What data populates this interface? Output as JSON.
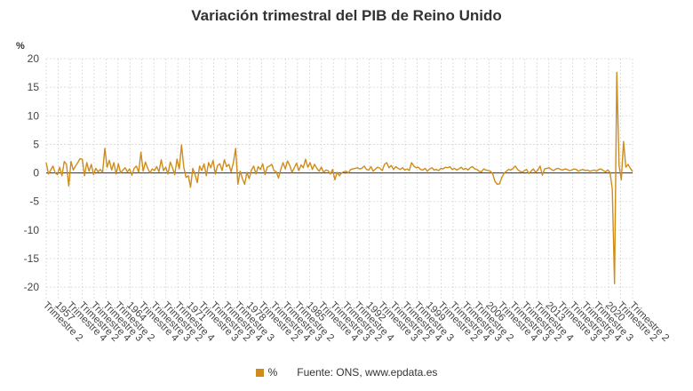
{
  "chart_data": {
    "type": "line",
    "title": "Variación trimestral del PIB de Reino Unido",
    "ylabel": "%",
    "ylim": [
      -22,
      20
    ],
    "yticks": [
      20,
      15,
      10,
      5,
      0,
      -5,
      -10,
      -15,
      -20
    ],
    "x_start_year": 1955,
    "x_start_quarter": 2,
    "x_label_every": 2,
    "x_tick_labels": [
      "Trimestre 2",
      "1957",
      "Trimestre 4",
      "Trimestre 2",
      "Trimestre 4",
      "Trimestre 3",
      "Trimestre 2",
      "1964",
      "Trimestre 4",
      "Trimestre 3",
      "Trimestre 2",
      "Trimestre 4",
      "1971",
      "Trimestre 3",
      "Trimestre 2",
      "Trimestre 4",
      "Trimestre 3",
      "1978",
      "Trimestre 2",
      "Trimestre 4",
      "Trimestre 3",
      "Trimestre 2",
      "1985",
      "Trimestre 4",
      "Trimestre 3",
      "Trimestre 2",
      "Trimestre 4",
      "1992",
      "Trimestre 3",
      "Trimestre 2",
      "Trimestre 4",
      "Trimestre 3",
      "1999",
      "Trimestre 2",
      "Trimestre 4",
      "Trimestre 3",
      "Trimestre 2",
      "2006",
      "Trimestre 4",
      "Trimestre 3",
      "Trimestre 2",
      "Trimestre 4",
      "2013",
      "Trimestre 3",
      "Trimestre 2",
      "Trimestre 4",
      "Trimestre 3",
      "2020",
      "Trimestre 2",
      "Trimestre 2"
    ],
    "grid": true,
    "legend_position": "bottom",
    "series": [
      {
        "name": "%",
        "color": "#d08c1a",
        "values": [
          1.8,
          -0.2,
          0.5,
          1.2,
          0.0,
          -0.3,
          1.0,
          -0.5,
          2.0,
          1.5,
          -2.3,
          2.0,
          0.5,
          1.2,
          1.8,
          2.5,
          2.4,
          -0.5,
          1.8,
          0.3,
          1.5,
          -0.3,
          0.8,
          0.2,
          0.6,
          0.1,
          4.3,
          1.0,
          2.2,
          0.5,
          1.8,
          -0.2,
          1.6,
          0.0,
          0.5,
          0.9,
          0.2,
          0.7,
          -0.4,
          0.8,
          1.2,
          0.1,
          3.6,
          0.3,
          1.9,
          0.8,
          0.0,
          0.7,
          0.4,
          1.1,
          0.2,
          2.3,
          0.4,
          1.0,
          -0.2,
          1.9,
          0.9,
          -0.3,
          2.4,
          0.7,
          4.9,
          1.0,
          -0.8,
          -0.5,
          -2.5,
          0.8,
          -0.3,
          -1.7,
          1.2,
          0.4,
          1.6,
          -0.5,
          1.8,
          0.9,
          2.2,
          -0.2,
          1.3,
          1.6,
          0.4,
          2.3,
          1.1,
          1.5,
          0.2,
          1.8,
          4.3,
          -2.0,
          0.3,
          -1.0,
          -2.0,
          0.1,
          -1.0,
          0.5,
          1.2,
          -0.2,
          1.1,
          0.6,
          1.6,
          -0.3,
          1.0,
          1.2,
          1.5,
          0.4,
          0.2,
          -0.9,
          0.6,
          1.8,
          0.7,
          2.1,
          1.3,
          0.1,
          0.9,
          1.7,
          0.4,
          1.4,
          0.9,
          2.4,
          1.0,
          1.8,
          0.6,
          1.5,
          0.8,
          0.3,
          1.0,
          0.1,
          0.5,
          0.4,
          -0.2,
          0.6,
          -1.2,
          0.1,
          -0.5,
          0.0,
          0.2,
          0.3,
          0.0,
          0.6,
          0.7,
          0.8,
          0.9,
          0.7,
          0.8,
          1.2,
          0.6,
          0.5,
          1.1,
          0.3,
          0.7,
          1.0,
          0.8,
          0.4,
          1.5,
          1.8,
          0.9,
          1.3,
          0.6,
          1.1,
          0.8,
          0.6,
          0.9,
          0.5,
          0.7,
          0.4,
          1.8,
          1.2,
          0.9,
          1.0,
          0.6,
          0.5,
          0.8,
          0.3,
          0.7,
          0.9,
          0.5,
          0.6,
          0.4,
          0.8,
          0.7,
          1.0,
          0.9,
          1.1,
          0.6,
          0.8,
          0.5,
          0.7,
          1.0,
          0.6,
          0.8,
          0.5,
          0.9,
          1.1,
          0.7,
          0.6,
          0.3,
          0.2,
          0.7,
          0.5,
          0.4,
          0.3,
          -0.2,
          -1.5,
          -2.0,
          -1.9,
          -0.8,
          -0.1,
          0.3,
          0.6,
          0.5,
          0.8,
          1.2,
          0.6,
          0.3,
          0.1,
          0.4,
          0.6,
          -0.1,
          0.3,
          0.7,
          0.1,
          0.5,
          1.2,
          -0.4,
          0.7,
          0.8,
          0.9,
          0.6,
          0.4,
          0.7,
          0.8,
          0.6,
          0.5,
          0.7,
          0.6,
          0.4,
          0.5,
          0.7,
          0.6,
          0.3,
          0.5,
          0.6,
          0.4,
          0.5,
          0.3,
          0.4,
          0.5,
          0.3,
          0.6,
          0.7,
          0.4,
          0.2,
          0.5,
          0.1,
          -2.8,
          -19.4,
          17.6,
          1.3,
          -1.2,
          5.5,
          1.0,
          1.5,
          0.8,
          0.2
        ]
      }
    ]
  },
  "legend": {
    "label": "%",
    "source": "Fuente: ONS, www.epdata.es"
  }
}
